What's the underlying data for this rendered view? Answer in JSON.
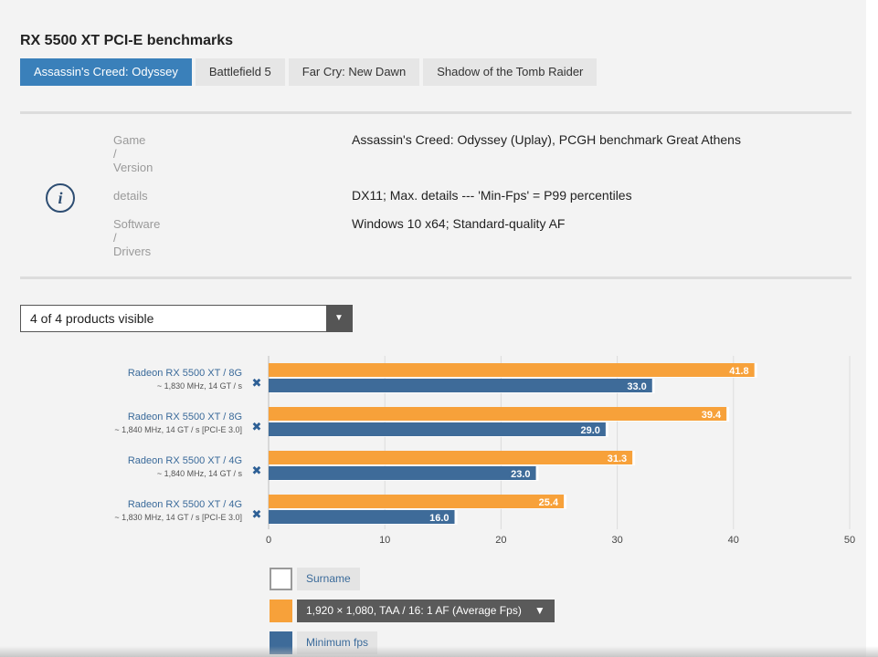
{
  "title": "RX 5500 XT PCI-E benchmarks",
  "tabs": [
    {
      "label": "Assassin's Creed: Odyssey",
      "active": true
    },
    {
      "label": "Battlefield 5",
      "active": false
    },
    {
      "label": "Far Cry: New Dawn",
      "active": false
    },
    {
      "label": "Shadow of the Tomb Raider",
      "active": false
    }
  ],
  "info": {
    "icon": "info-icon",
    "rows": [
      {
        "label_lines": [
          "Game",
          "/",
          "Version"
        ],
        "value": "Assassin's Creed: Odyssey (Uplay), PCGH benchmark Great Athens"
      },
      {
        "label_lines": [
          "details"
        ],
        "value": "DX11; Max. details --- 'Min-Fps' = P99 percentiles"
      },
      {
        "label_lines": [
          "Software",
          "/",
          "Drivers"
        ],
        "value": "Windows 10 x64; Standard-quality AF"
      }
    ]
  },
  "product_filter": {
    "selected": "4 of 4 products visible",
    "arrow": "▼"
  },
  "chart_data": {
    "type": "bar",
    "orientation": "horizontal",
    "categories": [
      {
        "name": "Radeon RX 5500 XT / 8G",
        "sub": "~ 1,830 MHz, 14 GT / s"
      },
      {
        "name": "Radeon RX 5500 XT / 8G",
        "sub": "~ 1,840 MHz, 14 GT / s [PCI-E 3.0]"
      },
      {
        "name": "Radeon RX 5500 XT / 4G",
        "sub": "~ 1,840 MHz, 14 GT / s"
      },
      {
        "name": "Radeon RX 5500 XT / 4G",
        "sub": "~ 1,830 MHz, 14 GT / s [PCI-E 3.0]"
      }
    ],
    "series": [
      {
        "name": "1,920 × 1,080, TAA / 16: 1 AF (Average Fps)",
        "color": "#f7a13a",
        "values": [
          41.8,
          39.4,
          31.3,
          25.4
        ]
      },
      {
        "name": "Minimum fps",
        "color": "#3e6b99",
        "values": [
          33.0,
          29.0,
          23.0,
          16.0
        ]
      }
    ],
    "xlim": [
      0,
      50
    ],
    "xticks": [
      0,
      10,
      20,
      30,
      40,
      50
    ],
    "grid": true,
    "remove_glyph": "✖"
  },
  "legend": {
    "surname_label": "Surname",
    "average_label": "1,920 × 1,080, TAA / 16: 1 AF (Average Fps)",
    "average_arrow": "▼",
    "min_label": "Minimum fps",
    "colors": {
      "surname": "#ffffff",
      "average": "#f7a13a",
      "min": "#3e6b99"
    }
  }
}
